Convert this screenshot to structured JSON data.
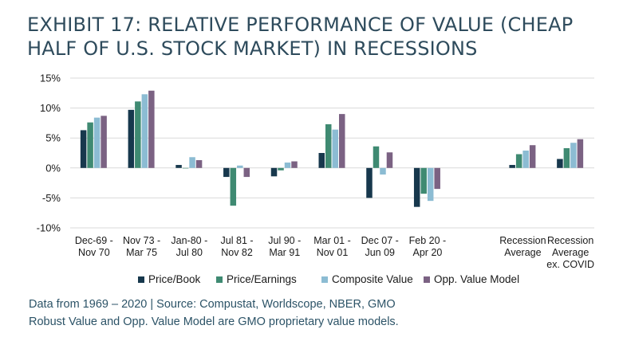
{
  "title_lines": [
    "EXHIBIT 17: RELATIVE PERFORMANCE OF VALUE (CHEAP",
    "HALF OF U.S. STOCK MARKET) IN RECESSIONS"
  ],
  "footer": {
    "line1": "Data from 1969 – 2020 | Source: Compustat, Worldscope, NBER, GMO",
    "line2": "Robust Value and Opp. Value Model are GMO proprietary value models."
  },
  "colors": {
    "Price/Book": "#17384d",
    "Price/Earnings": "#3f8a72",
    "Composite Value": "#8cbcd3",
    "Opp. Value Model": "#7b6283"
  },
  "chart_data": {
    "type": "bar",
    "ylim": [
      -10,
      15
    ],
    "yticks": [
      15,
      10,
      5,
      0,
      -5,
      -10
    ],
    "ytick_labels": [
      "15%",
      "10%",
      "5%",
      "0%",
      "-5%",
      "-10%"
    ],
    "grid": true,
    "legend_position": "bottom",
    "categories": [
      [
        "Dec-69 -",
        "Nov 70"
      ],
      [
        "Nov 73 -",
        "Mar 75"
      ],
      [
        "Jan-80 -",
        "Jul 80"
      ],
      [
        "Jul 81 -",
        "Nov 82"
      ],
      [
        "Jul 90 -",
        "Mar 91"
      ],
      [
        "Mar 01 -",
        "Nov 01"
      ],
      [
        "Dec 07 -",
        "Jun 09"
      ],
      [
        "Feb 20 -",
        "Apr 20"
      ],
      [],
      [
        "Recession",
        "Average"
      ],
      [
        "Recession",
        "Average",
        "ex. COVID"
      ]
    ],
    "series": [
      {
        "name": "Price/Book",
        "values": [
          6.3,
          9.7,
          0.5,
          -1.5,
          -1.4,
          2.5,
          -5.0,
          -6.5,
          null,
          0.5,
          1.5
        ]
      },
      {
        "name": "Price/Earnings",
        "values": [
          7.6,
          11.1,
          0.0,
          -6.3,
          -0.4,
          7.3,
          3.6,
          -4.3,
          null,
          2.3,
          3.3
        ]
      },
      {
        "name": "Composite Value",
        "values": [
          8.4,
          12.3,
          1.8,
          0.4,
          0.9,
          6.4,
          -1.1,
          -5.5,
          null,
          2.9,
          4.2
        ]
      },
      {
        "name": "Opp. Value Model",
        "values": [
          8.7,
          12.9,
          1.3,
          -1.5,
          1.1,
          9.0,
          2.6,
          -3.5,
          null,
          3.8,
          4.8
        ]
      }
    ]
  }
}
